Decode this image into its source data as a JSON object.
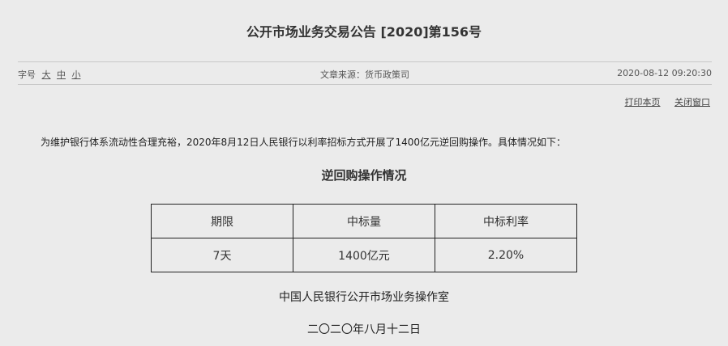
{
  "title": "公开市场业务交易公告 [2020]第156号",
  "meta": {
    "font_size_label": "字号",
    "font_sizes": [
      "大",
      "中",
      "小"
    ],
    "source": "文章来源：货币政策司",
    "datetime": "2020-08-12 09:20:30"
  },
  "links": {
    "print": "打印本页",
    "close": "关闭窗口"
  },
  "intro": "为维护银行体系流动性合理充裕，2020年8月12日人民银行以利率招标方式开展了1400亿元逆回购操作。具体情况如下：",
  "table": {
    "title": "逆回购操作情况",
    "headers": [
      "期限",
      "中标量",
      "中标利率"
    ],
    "rows": [
      [
        "7天",
        "1400亿元",
        "2.20%"
      ]
    ]
  },
  "signature": "中国人民银行公开市场业务操作室",
  "date": "二〇二〇年八月十二日"
}
